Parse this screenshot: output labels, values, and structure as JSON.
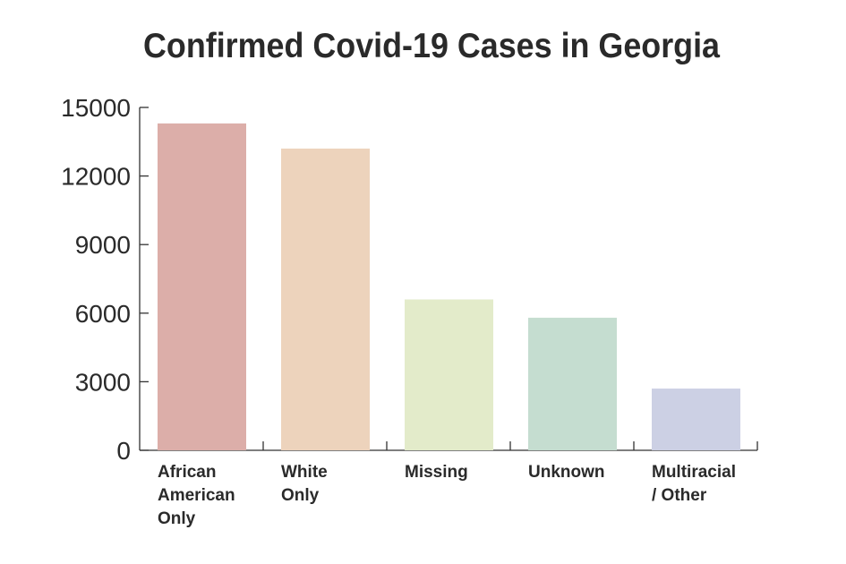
{
  "chart_data": {
    "type": "bar",
    "title": "Confirmed Covid-19 Cases in Georgia",
    "xlabel": "",
    "ylabel": "",
    "ylim": [
      0,
      15000
    ],
    "yticks": [
      "0",
      "3000",
      "6000",
      "9000",
      "12000",
      "15000"
    ],
    "categories": [
      [
        "African",
        "American",
        "Only"
      ],
      [
        "White",
        "Only"
      ],
      [
        "Missing"
      ],
      [
        "Unknown"
      ],
      [
        "Multiracial",
        "/ Other"
      ]
    ],
    "values": [
      14300,
      13200,
      6600,
      5800,
      2700
    ],
    "colors": [
      "#dcaea9",
      "#edd3bc",
      "#e3ebca",
      "#c5ddd0",
      "#ccd0e4"
    ],
    "grid": false,
    "legend": "none"
  }
}
